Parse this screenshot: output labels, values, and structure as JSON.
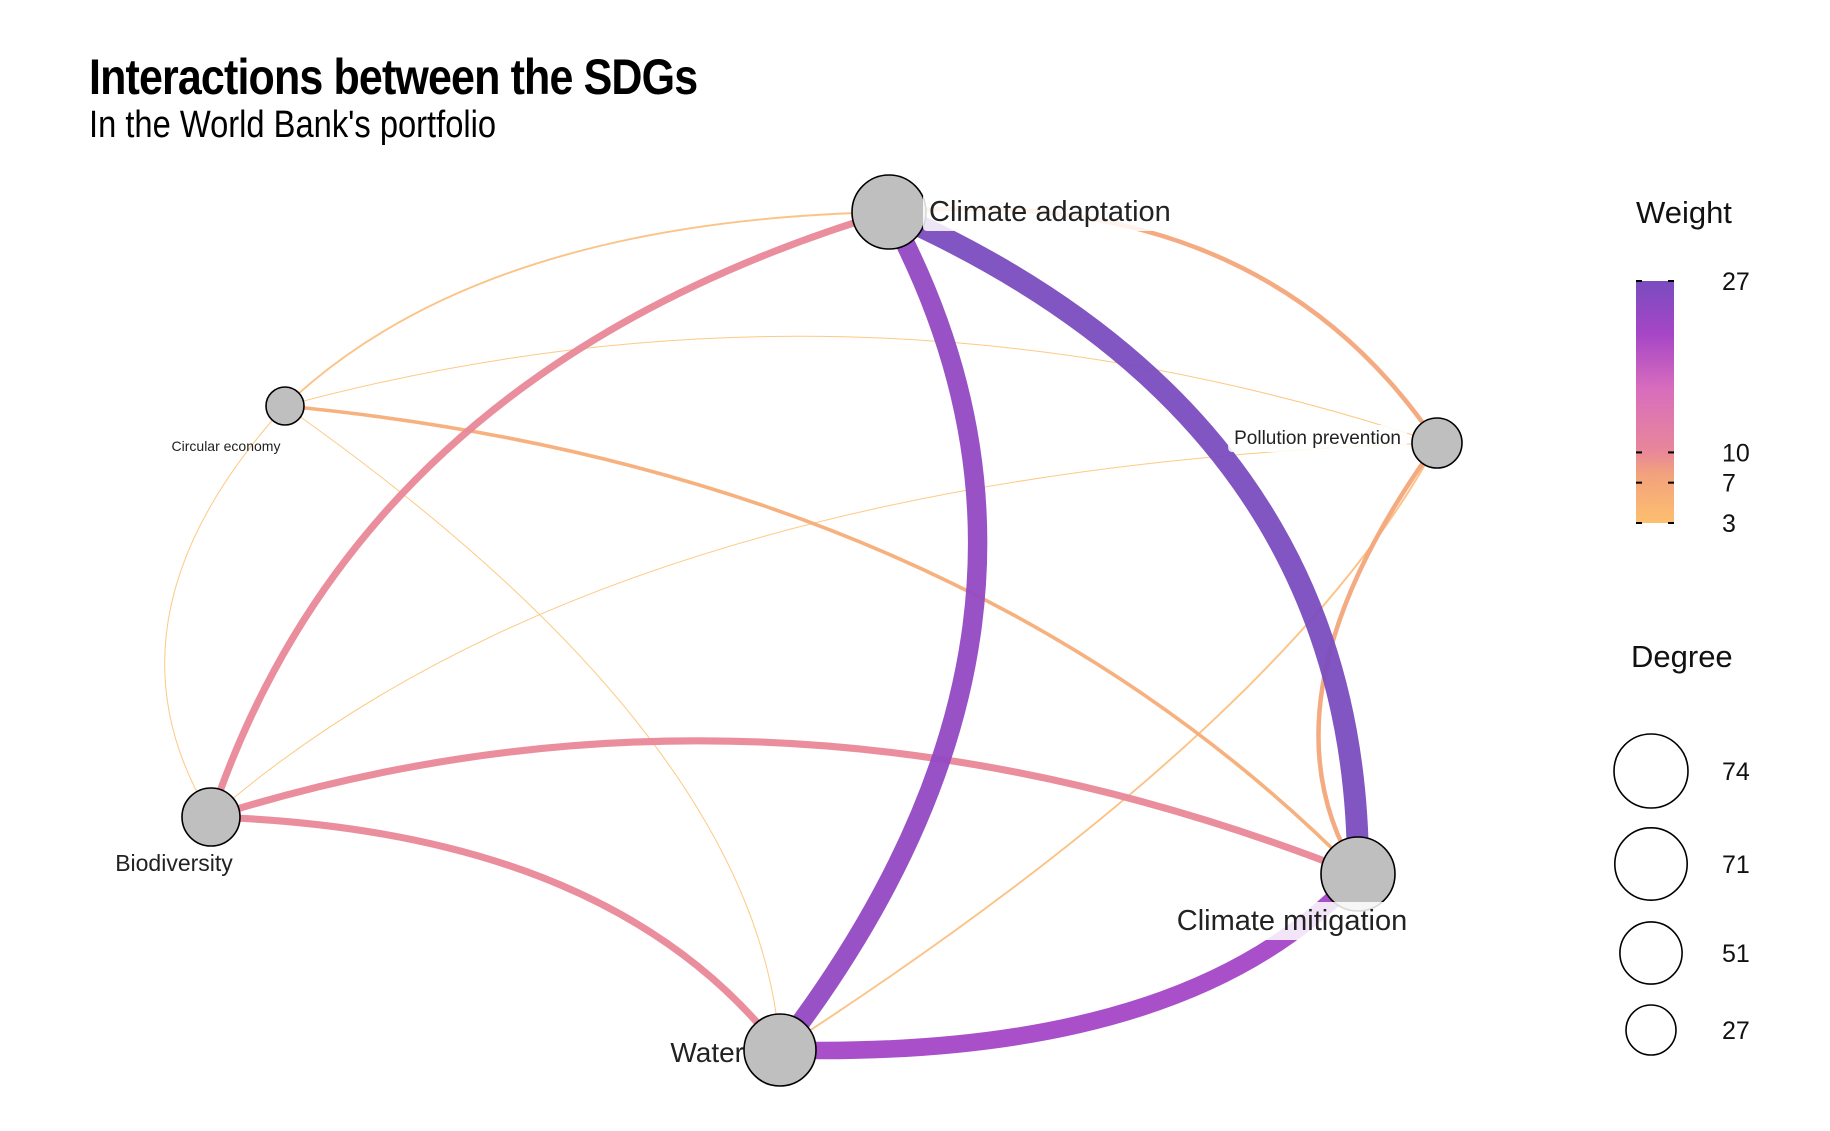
{
  "header": {
    "title": "Interactions between the SDGs",
    "subtitle": "In the World Bank's portfolio"
  },
  "colors": {
    "weight_low": "#fdbf6f",
    "weight_mid": "#e8869a",
    "weight_high": "#9b45c7",
    "weight_top": "#7a4cbf",
    "node_fill": "#bfbfbf",
    "node_stroke": "#000000"
  },
  "chart_data": {
    "type": "network",
    "nodes": [
      {
        "id": "climate_adaptation",
        "label": "Climate adaptation"
      },
      {
        "id": "circular_economy",
        "label": "Circular economy"
      },
      {
        "id": "pollution_prevention",
        "label": "Pollution prevention"
      },
      {
        "id": "biodiversity",
        "label": "Biodiversity"
      },
      {
        "id": "climate_mitigation",
        "label": "Climate mitigation"
      },
      {
        "id": "water",
        "label": "Water"
      }
    ],
    "edges": [
      {
        "source": "climate_adaptation",
        "target": "climate_mitigation",
        "weight": 27
      },
      {
        "source": "climate_adaptation",
        "target": "water",
        "weight": 24
      },
      {
        "source": "water",
        "target": "climate_mitigation",
        "weight": 22
      },
      {
        "source": "climate_adaptation",
        "target": "biodiversity",
        "weight": 10
      },
      {
        "source": "biodiversity",
        "target": "climate_mitigation",
        "weight": 10
      },
      {
        "source": "biodiversity",
        "target": "water",
        "weight": 10
      },
      {
        "source": "climate_adaptation",
        "target": "pollution_prevention",
        "weight": 7
      },
      {
        "source": "pollution_prevention",
        "target": "climate_mitigation",
        "weight": 7
      },
      {
        "source": "circular_economy",
        "target": "climate_mitigation",
        "weight": 6
      },
      {
        "source": "circular_economy",
        "target": "climate_adaptation",
        "weight": 4
      },
      {
        "source": "pollution_prevention",
        "target": "water",
        "weight": 4
      },
      {
        "source": "circular_economy",
        "target": "pollution_prevention",
        "weight": 3
      },
      {
        "source": "biodiversity",
        "target": "pollution_prevention",
        "weight": 3
      },
      {
        "source": "circular_economy",
        "target": "water",
        "weight": 3
      },
      {
        "source": "circular_economy",
        "target": "biodiversity",
        "weight": 3
      }
    ],
    "legend": {
      "weight": {
        "title": "Weight",
        "range": [
          3,
          27
        ],
        "breaks": [
          27,
          10,
          7,
          3
        ]
      },
      "degree": {
        "title": "Degree",
        "range": [
          27,
          74
        ],
        "breaks": [
          74,
          71,
          51,
          27
        ]
      }
    }
  }
}
